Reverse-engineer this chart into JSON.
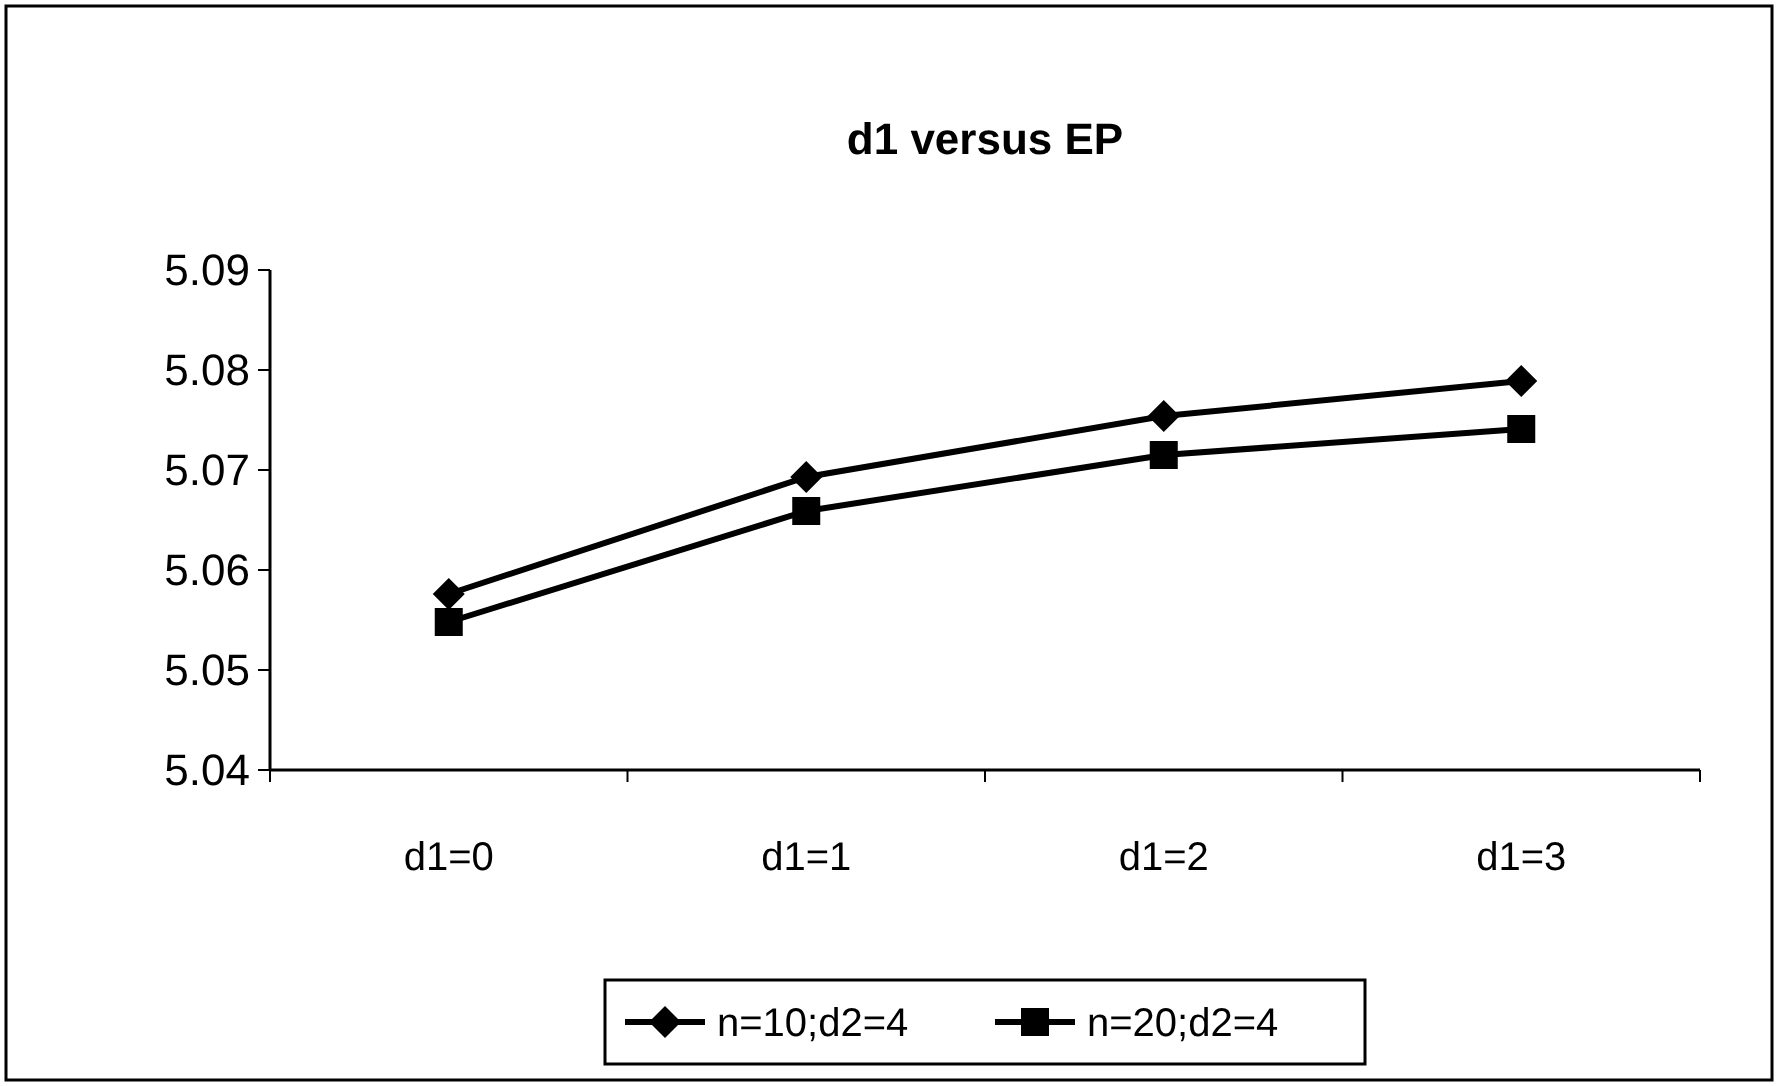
{
  "chart_data": {
    "type": "line",
    "title": "d1 versus EP",
    "categories": [
      "d1=0",
      "d1=1",
      "d1=2",
      "d1=3"
    ],
    "series": [
      {
        "name": "n=10;d2=4",
        "color": "#000000",
        "marker": "diamond",
        "values": [
          5.0576,
          5.0693,
          5.0754,
          5.0789
        ]
      },
      {
        "name": "n=20;d2=4",
        "color": "#000000",
        "marker": "square",
        "values": [
          5.0548,
          5.0659,
          5.0715,
          5.0741
        ]
      }
    ],
    "ylim": [
      5.04,
      5.09
    ],
    "yticks": [
      5.04,
      5.05,
      5.06,
      5.07,
      5.08,
      5.09
    ],
    "grid": false,
    "legend": "bottom"
  }
}
